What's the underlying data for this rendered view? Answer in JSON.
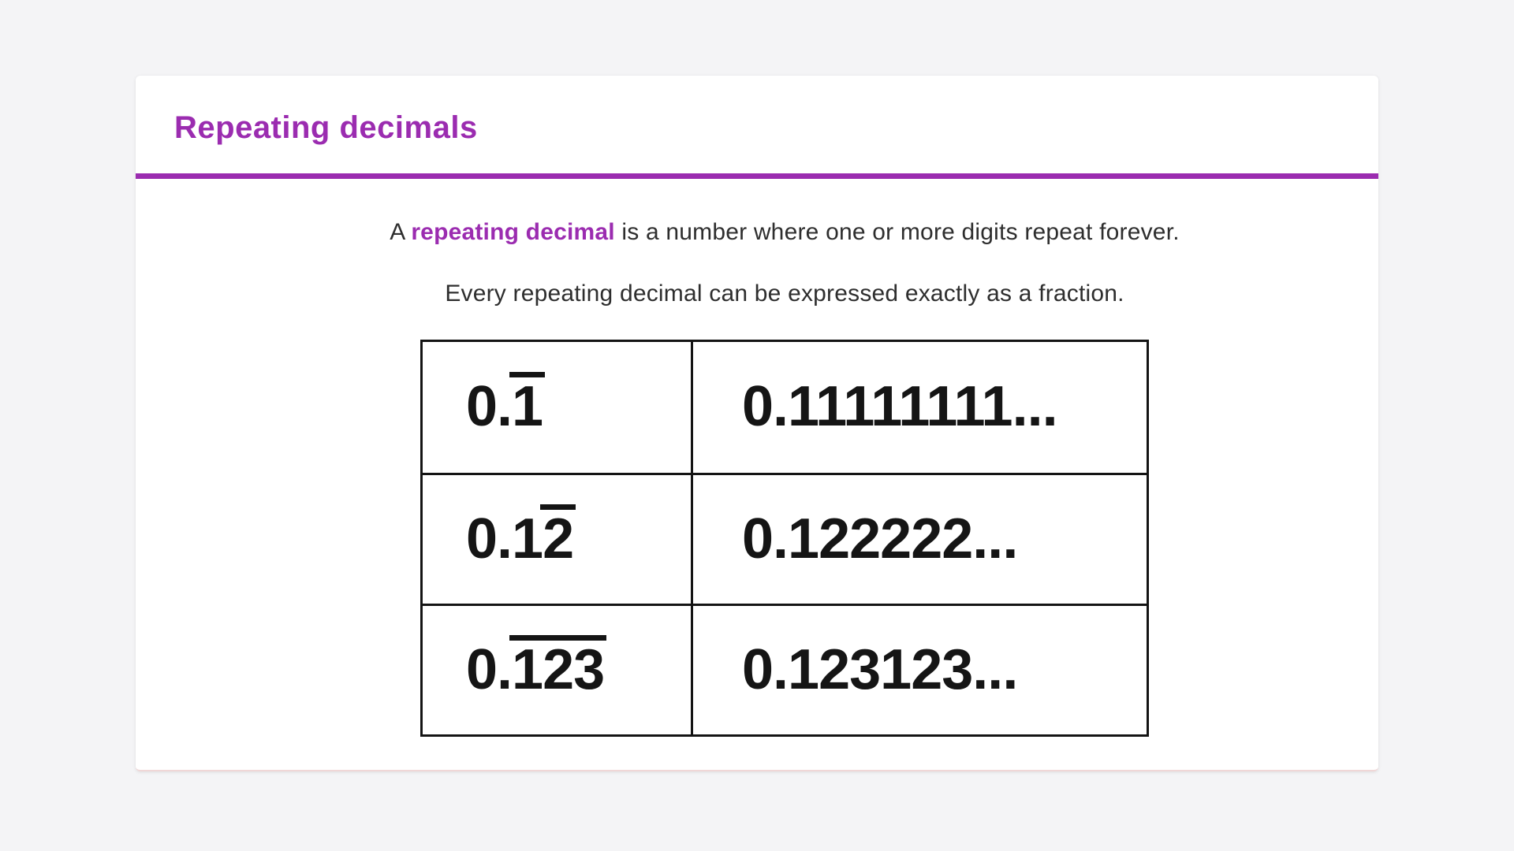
{
  "page": {
    "background_color": "#f4f4f6",
    "card_background": "#ffffff",
    "accent_color": "#9b2cb0",
    "table_border_color": "#141414",
    "body_text_color": "#2e2e2e"
  },
  "header": {
    "title": "Repeating decimals"
  },
  "intro": {
    "sentence1_prefix": "A ",
    "sentence1_highlight": "repeating decimal",
    "sentence1_suffix": " is a number where one or more digits repeat forever.",
    "sentence2": "Every repeating decimal can be expressed exactly as a fraction."
  },
  "table": {
    "description": "notation with overline over repeating digits vs decimal expansion",
    "rows": [
      {
        "prefix": "0.",
        "repeat": "1",
        "expansion": "0.11111111..."
      },
      {
        "prefix": "0.1",
        "repeat": "2",
        "expansion": "0.122222..."
      },
      {
        "prefix": "0.",
        "repeat": "123",
        "expansion": "0.123123..."
      }
    ]
  }
}
